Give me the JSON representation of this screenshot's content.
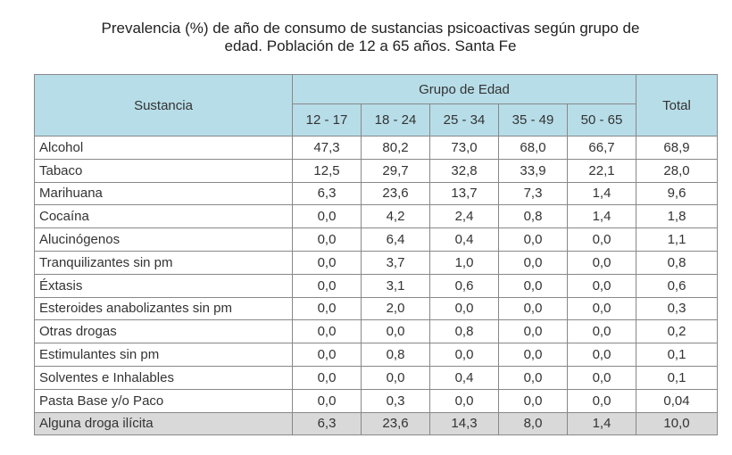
{
  "title_line1": "Prevalencia (%) de año de consumo de sustancias psicoactivas según grupo de",
  "title_line2": "edad.  Población de 12 a 65 años. Santa Fe",
  "header": {
    "sustancia": "Sustancia",
    "grupo": "Grupo de Edad",
    "total": "Total",
    "ages": [
      "12 - 17",
      "18 - 24",
      "25 - 34",
      "35 - 49",
      "50 - 65"
    ]
  },
  "rows": [
    {
      "name": "Alcohol",
      "values": [
        "47,3",
        "80,2",
        "73,0",
        "68,0",
        "66,7",
        "68,9"
      ]
    },
    {
      "name": "Tabaco",
      "values": [
        "12,5",
        "29,7",
        "32,8",
        "33,9",
        "22,1",
        "28,0"
      ]
    },
    {
      "name": "Marihuana",
      "values": [
        "6,3",
        "23,6",
        "13,7",
        "7,3",
        "1,4",
        "9,6"
      ]
    },
    {
      "name": "Cocaína",
      "values": [
        "0,0",
        "4,2",
        "2,4",
        "0,8",
        "1,4",
        "1,8"
      ]
    },
    {
      "name": "Alucinógenos",
      "values": [
        "0,0",
        "6,4",
        "0,4",
        "0,0",
        "0,0",
        "1,1"
      ]
    },
    {
      "name": "Tranquilizantes sin pm",
      "values": [
        "0,0",
        "3,7",
        "1,0",
        "0,0",
        "0,0",
        "0,8"
      ]
    },
    {
      "name": "Éxtasis",
      "values": [
        "0,0",
        "3,1",
        "0,6",
        "0,0",
        "0,0",
        "0,6"
      ]
    },
    {
      "name": "Esteroides anabolizantes sin pm",
      "values": [
        "0,0",
        "2,0",
        "0,0",
        "0,0",
        "0,0",
        "0,3"
      ]
    },
    {
      "name": "Otras drogas",
      "values": [
        "0,0",
        "0,0",
        "0,8",
        "0,0",
        "0,0",
        "0,2"
      ]
    },
    {
      "name": "Estimulantes sin pm",
      "values": [
        "0,0",
        "0,8",
        "0,0",
        "0,0",
        "0,0",
        "0,1"
      ]
    },
    {
      "name": "Solventes e Inhalables",
      "values": [
        "0,0",
        "0,0",
        "0,4",
        "0,0",
        "0,0",
        "0,1"
      ]
    },
    {
      "name": "Pasta Base y/o Paco",
      "values": [
        "0,0",
        "0,3",
        "0,0",
        "0,0",
        "0,0",
        "0,04"
      ]
    },
    {
      "name": "Alguna droga ilícita",
      "values": [
        "6,3",
        "23,6",
        "14,3",
        "8,0",
        "1,4",
        "10,0"
      ],
      "highlight": true
    }
  ],
  "colors": {
    "header_bg": "#b7dde8",
    "total_row_bg": "#d9d9d9"
  }
}
